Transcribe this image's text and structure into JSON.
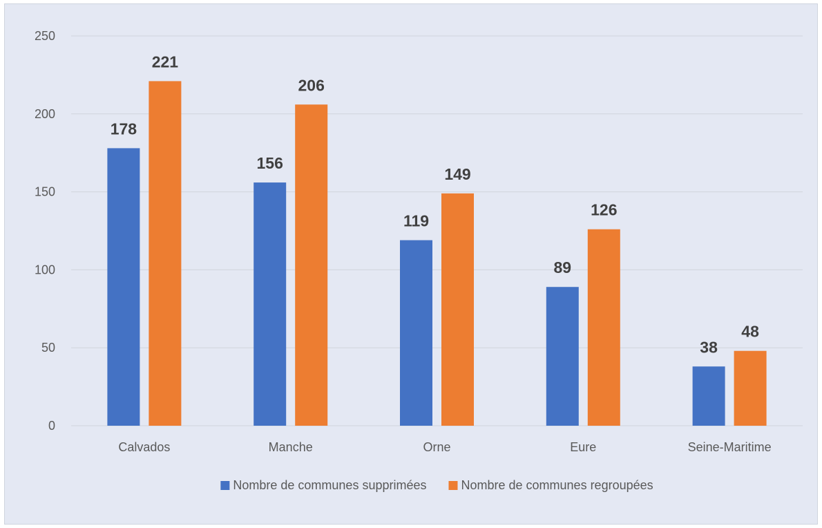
{
  "chart_data": {
    "type": "bar",
    "categories": [
      "Calvados",
      "Manche",
      "Orne",
      "Eure",
      "Seine-Maritime"
    ],
    "series": [
      {
        "name": "Nombre de communes supprimées",
        "values": [
          178,
          156,
          119,
          89,
          38
        ],
        "color": "#4472c4"
      },
      {
        "name": "Nombre de communes regroupées",
        "values": [
          221,
          206,
          149,
          126,
          48
        ],
        "color": "#ed7d31"
      }
    ],
    "title": "",
    "xlabel": "",
    "ylabel": "",
    "ylim": [
      0,
      250
    ],
    "yticks": [
      0,
      50,
      100,
      150,
      200,
      250
    ],
    "grid": true,
    "legend_position": "bottom",
    "data_labels": true,
    "colors": {
      "background": "#e4e8f3",
      "gridline": "#d0d4dc",
      "axis_text": "#595959",
      "data_label_text": "#404040"
    }
  }
}
